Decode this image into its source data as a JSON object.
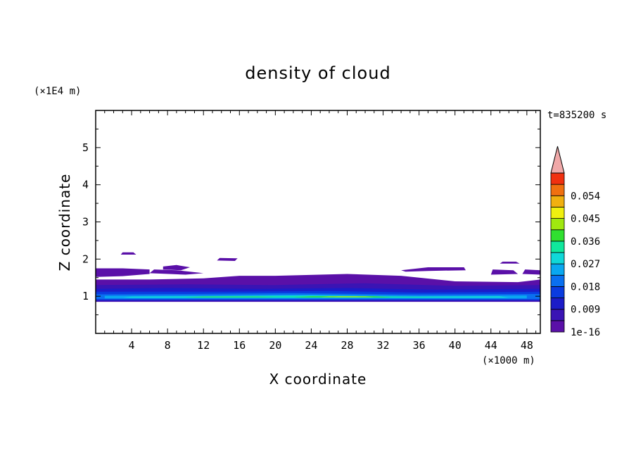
{
  "chart_data": {
    "type": "heatmap",
    "title": "density of cloud",
    "xlabel": "X coordinate",
    "ylabel": "Z coordinate",
    "x_unit": "(×1000 m)",
    "y_unit": "(×1E4 m)",
    "time_label": "t=835200 s",
    "xlim": [
      0,
      49.5
    ],
    "ylim": [
      0,
      6
    ],
    "x_ticks": [
      4,
      8,
      12,
      16,
      20,
      24,
      28,
      32,
      36,
      40,
      44,
      48
    ],
    "y_ticks": [
      1,
      2,
      3,
      4,
      5
    ],
    "colorbar": {
      "levels": [
        1e-16,
        0.0045,
        0.009,
        0.0135,
        0.018,
        0.0225,
        0.027,
        0.0315,
        0.036,
        0.0405,
        0.045,
        0.0495,
        0.054,
        0.0585,
        0.063
      ],
      "labels": [
        "1e-16",
        "0.009",
        "0.018",
        "0.027",
        "0.036",
        "0.045",
        "0.054"
      ],
      "label_values": [
        1e-16,
        0.009,
        0.018,
        0.027,
        0.036,
        0.045,
        0.054
      ],
      "colors": [
        "#5a10a8",
        "#3a14b4",
        "#1c1cc8",
        "#0a3ce0",
        "#0a70f0",
        "#0aa8f0",
        "#10d8d8",
        "#10e89c",
        "#30e030",
        "#a0e810",
        "#f0f010",
        "#f0b010",
        "#f07010",
        "#f03010"
      ],
      "extend_color": "#f0a8a8"
    },
    "regions": [
      {
        "level": 0,
        "x": [
          1.0,
          0,
          48.5,
          0
        ],
        "z": [
          1.0,
          0,
          0.9,
          0
        ],
        "poly": [
          [
            0,
            0.85
          ],
          [
            49.5,
            0.85
          ],
          [
            49.5,
            1.45
          ],
          [
            47,
            1.38
          ],
          [
            40,
            1.4
          ],
          [
            34,
            1.55
          ],
          [
            28,
            1.6
          ],
          [
            20,
            1.55
          ],
          [
            16,
            1.55
          ],
          [
            12,
            1.48
          ],
          [
            6,
            1.45
          ],
          [
            0,
            1.45
          ]
        ]
      },
      {
        "level": 0,
        "poly": [
          [
            0,
            1.52
          ],
          [
            3,
            1.54
          ],
          [
            6,
            1.6
          ],
          [
            6,
            1.72
          ],
          [
            3,
            1.75
          ],
          [
            0,
            1.75
          ]
        ]
      },
      {
        "level": 0,
        "poly": [
          [
            6,
            1.62
          ],
          [
            10,
            1.58
          ],
          [
            12,
            1.62
          ],
          [
            9,
            1.7
          ],
          [
            6.5,
            1.72
          ]
        ]
      },
      {
        "level": 0,
        "poly": [
          [
            7.5,
            1.72
          ],
          [
            9.5,
            1.7
          ],
          [
            10.5,
            1.78
          ],
          [
            9,
            1.84
          ],
          [
            7.5,
            1.8
          ]
        ]
      },
      {
        "level": 0,
        "poly": [
          [
            2.8,
            2.12
          ],
          [
            4.5,
            2.12
          ],
          [
            4.2,
            2.18
          ],
          [
            3,
            2.18
          ]
        ]
      },
      {
        "level": 0,
        "poly": [
          [
            13.5,
            1.96
          ],
          [
            15.5,
            1.95
          ],
          [
            15.8,
            2.02
          ],
          [
            13.8,
            2.03
          ]
        ]
      },
      {
        "level": 0,
        "poly": [
          [
            34,
            1.7
          ],
          [
            37,
            1.78
          ],
          [
            41,
            1.78
          ],
          [
            41.2,
            1.7
          ],
          [
            37,
            1.68
          ],
          [
            34.5,
            1.66
          ]
        ]
      },
      {
        "level": 0,
        "poly": [
          [
            44,
            1.58
          ],
          [
            47,
            1.6
          ],
          [
            46.5,
            1.7
          ],
          [
            44.2,
            1.72
          ]
        ]
      },
      {
        "level": 0,
        "poly": [
          [
            47.5,
            1.6
          ],
          [
            49.5,
            1.58
          ],
          [
            49.5,
            1.7
          ],
          [
            47.8,
            1.72
          ]
        ]
      },
      {
        "level": 0,
        "poly": [
          [
            45,
            1.88
          ],
          [
            47.2,
            1.88
          ],
          [
            46.8,
            1.93
          ],
          [
            45.3,
            1.93
          ]
        ]
      },
      {
        "level": 1,
        "poly": [
          [
            0,
            0.86
          ],
          [
            49.5,
            0.86
          ],
          [
            49.5,
            1.3
          ],
          [
            40,
            1.28
          ],
          [
            30,
            1.35
          ],
          [
            20,
            1.3
          ],
          [
            10,
            1.32
          ],
          [
            0,
            1.3
          ]
        ]
      },
      {
        "level": 2,
        "poly": [
          [
            0,
            0.88
          ],
          [
            49.5,
            0.88
          ],
          [
            49.5,
            1.2
          ],
          [
            38,
            1.18
          ],
          [
            28,
            1.22
          ],
          [
            18,
            1.2
          ],
          [
            8,
            1.22
          ],
          [
            0,
            1.2
          ]
        ]
      },
      {
        "level": 3,
        "poly": [
          [
            0,
            0.9
          ],
          [
            49.5,
            0.9
          ],
          [
            49.5,
            1.12
          ],
          [
            36,
            1.1
          ],
          [
            26,
            1.14
          ],
          [
            14,
            1.12
          ],
          [
            0,
            1.12
          ]
        ]
      },
      {
        "level": 4,
        "poly": [
          [
            0,
            0.92
          ],
          [
            49.5,
            0.92
          ],
          [
            49.5,
            1.06
          ],
          [
            34,
            1.05
          ],
          [
            22,
            1.08
          ],
          [
            10,
            1.06
          ],
          [
            0,
            1.05
          ]
        ]
      },
      {
        "level": 5,
        "poly": [
          [
            1,
            0.94
          ],
          [
            48,
            0.94
          ],
          [
            48,
            1.02
          ],
          [
            36,
            1.01
          ],
          [
            24,
            1.04
          ],
          [
            12,
            1.02
          ],
          [
            1,
            1.01
          ]
        ]
      },
      {
        "level": 6,
        "poly": [
          [
            3,
            0.96
          ],
          [
            46,
            0.96
          ],
          [
            45,
            1.0
          ],
          [
            34,
            0.99
          ],
          [
            24,
            1.02
          ],
          [
            12,
            1.0
          ],
          [
            4,
            0.99
          ]
        ]
      },
      {
        "level": 7,
        "poly": [
          [
            8,
            0.97
          ],
          [
            40,
            0.97
          ],
          [
            34,
            0.99
          ],
          [
            24,
            1.0
          ],
          [
            12,
            0.99
          ]
        ]
      },
      {
        "level": 8,
        "poly": [
          [
            10,
            0.975
          ],
          [
            20,
            0.975
          ],
          [
            18,
            0.99
          ],
          [
            12,
            0.99
          ]
        ]
      },
      {
        "level": 8,
        "poly": [
          [
            22,
            0.97
          ],
          [
            33,
            0.97
          ],
          [
            31,
            1.0
          ],
          [
            24,
            1.0
          ]
        ]
      },
      {
        "level": 9,
        "poly": [
          [
            25,
            0.975
          ],
          [
            31,
            0.975
          ],
          [
            30,
            0.995
          ],
          [
            26,
            0.995
          ]
        ]
      },
      {
        "level": 10,
        "poly": [
          [
            26.5,
            0.98
          ],
          [
            29.5,
            0.98
          ],
          [
            29,
            0.99
          ],
          [
            27,
            0.99
          ]
        ]
      }
    ]
  }
}
